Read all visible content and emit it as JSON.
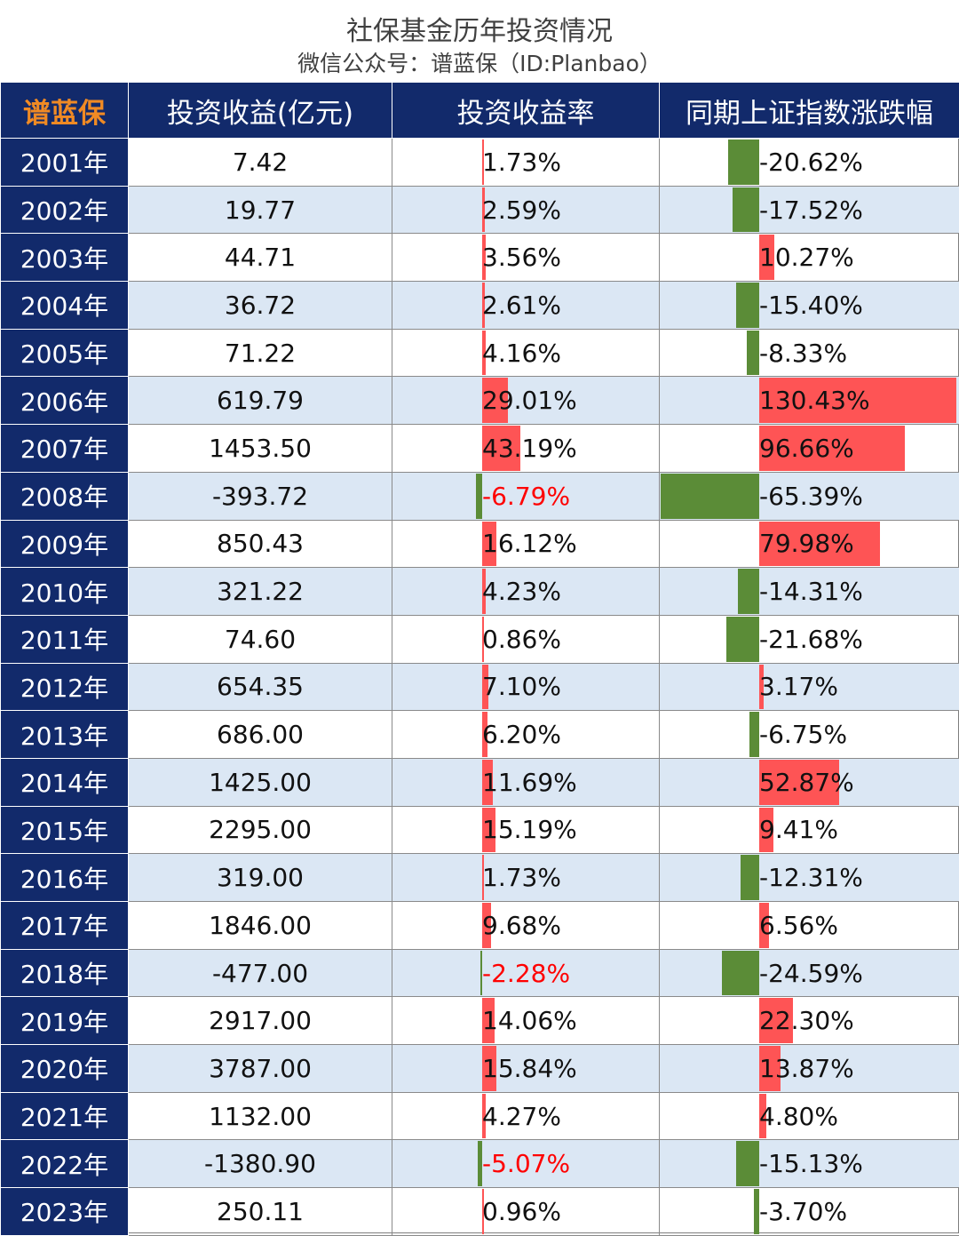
{
  "title": "社保基金历年投资情况",
  "subtitle": "微信公众号：谱蓝保（ID:Planbao）",
  "colors": {
    "header_bg": "#122a6b",
    "brand": "#f08a24",
    "alt_row": "#dbe7f4",
    "positive_bar": "#fe5455",
    "negative_bar": "#5b8c37",
    "negative_text": "#ff0000"
  },
  "headers": {
    "brand": "谱蓝保",
    "income": "投资收益(亿元)",
    "rate": "投资收益率",
    "index": "同期上证指数涨跌幅"
  },
  "chart_data": {
    "type": "table",
    "title": "社保基金历年投资情况",
    "columns": [
      "谱蓝保",
      "投资收益(亿元)",
      "投资收益率",
      "同期上证指数涨跌幅"
    ],
    "rows": [
      {
        "year": "2001年",
        "income": "7.42",
        "rate": "1.73%",
        "rate_value": 1.73,
        "index": "-20.62%",
        "index_value": -20.62
      },
      {
        "year": "2002年",
        "income": "19.77",
        "rate": "2.59%",
        "rate_value": 2.59,
        "index": "-17.52%",
        "index_value": -17.52
      },
      {
        "year": "2003年",
        "income": "44.71",
        "rate": "3.56%",
        "rate_value": 3.56,
        "index": "10.27%",
        "index_value": 10.27
      },
      {
        "year": "2004年",
        "income": "36.72",
        "rate": "2.61%",
        "rate_value": 2.61,
        "index": "-15.40%",
        "index_value": -15.4
      },
      {
        "year": "2005年",
        "income": "71.22",
        "rate": "4.16%",
        "rate_value": 4.16,
        "index": "-8.33%",
        "index_value": -8.33
      },
      {
        "year": "2006年",
        "income": "619.79",
        "rate": "29.01%",
        "rate_value": 29.01,
        "index": "130.43%",
        "index_value": 130.43
      },
      {
        "year": "2007年",
        "income": "1453.50",
        "rate": "43.19%",
        "rate_value": 43.19,
        "index": "96.66%",
        "index_value": 96.66
      },
      {
        "year": "2008年",
        "income": "-393.72",
        "rate": "-6.79%",
        "rate_value": -6.79,
        "index": "-65.39%",
        "index_value": -65.39
      },
      {
        "year": "2009年",
        "income": "850.43",
        "rate": "16.12%",
        "rate_value": 16.12,
        "index": "79.98%",
        "index_value": 79.98
      },
      {
        "year": "2010年",
        "income": "321.22",
        "rate": "4.23%",
        "rate_value": 4.23,
        "index": "-14.31%",
        "index_value": -14.31
      },
      {
        "year": "2011年",
        "income": "74.60",
        "rate": "0.86%",
        "rate_value": 0.86,
        "index": "-21.68%",
        "index_value": -21.68
      },
      {
        "year": "2012年",
        "income": "654.35",
        "rate": "7.10%",
        "rate_value": 7.1,
        "index": "3.17%",
        "index_value": 3.17
      },
      {
        "year": "2013年",
        "income": "686.00",
        "rate": "6.20%",
        "rate_value": 6.2,
        "index": "-6.75%",
        "index_value": -6.75
      },
      {
        "year": "2014年",
        "income": "1425.00",
        "rate": "11.69%",
        "rate_value": 11.69,
        "index": "52.87%",
        "index_value": 52.87
      },
      {
        "year": "2015年",
        "income": "2295.00",
        "rate": "15.19%",
        "rate_value": 15.19,
        "index": "9.41%",
        "index_value": 9.41
      },
      {
        "year": "2016年",
        "income": "319.00",
        "rate": "1.73%",
        "rate_value": 1.73,
        "index": "-12.31%",
        "index_value": -12.31
      },
      {
        "year": "2017年",
        "income": "1846.00",
        "rate": "9.68%",
        "rate_value": 9.68,
        "index": "6.56%",
        "index_value": 6.56
      },
      {
        "year": "2018年",
        "income": "-477.00",
        "rate": "-2.28%",
        "rate_value": -2.28,
        "index": "-24.59%",
        "index_value": -24.59
      },
      {
        "year": "2019年",
        "income": "2917.00",
        "rate": "14.06%",
        "rate_value": 14.06,
        "index": "22.30%",
        "index_value": 22.3
      },
      {
        "year": "2020年",
        "income": "3787.00",
        "rate": "15.84%",
        "rate_value": 15.84,
        "index": "13.87%",
        "index_value": 13.87
      },
      {
        "year": "2021年",
        "income": "1132.00",
        "rate": "4.27%",
        "rate_value": 4.27,
        "index": "4.80%",
        "index_value": 4.8
      },
      {
        "year": "2022年",
        "income": "-1380.90",
        "rate": "-5.07%",
        "rate_value": -5.07,
        "index": "-15.13%",
        "index_value": -15.13
      },
      {
        "year": "2023年",
        "income": "250.11",
        "rate": "0.96%",
        "rate_value": 0.96,
        "index": "-3.70%",
        "index_value": -3.7
      }
    ]
  }
}
